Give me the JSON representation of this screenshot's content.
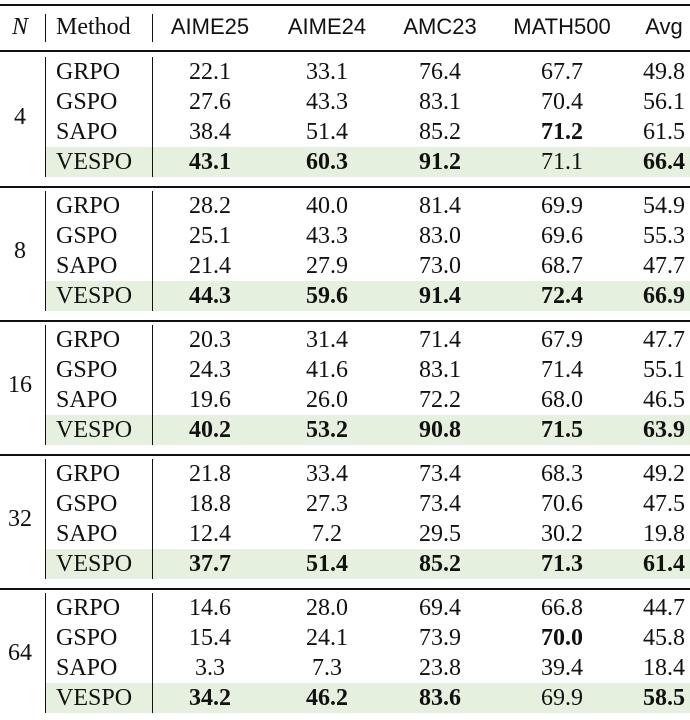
{
  "table": {
    "header": [
      "N",
      "Method",
      "AIME25",
      "AIME24",
      "AMC23",
      "MATH500",
      "Avg"
    ],
    "groups": [
      {
        "n": "4",
        "rows": [
          {
            "method": "GRPO",
            "values": [
              "22.1",
              "33.1",
              "76.4",
              "67.7",
              "49.8"
            ],
            "bold": []
          },
          {
            "method": "GSPO",
            "values": [
              "27.6",
              "43.3",
              "83.1",
              "70.4",
              "56.1"
            ],
            "bold": []
          },
          {
            "method": "SAPO",
            "values": [
              "38.4",
              "51.4",
              "85.2",
              "71.2",
              "61.5"
            ],
            "bold": [
              3
            ]
          },
          {
            "method": "VESPO",
            "values": [
              "43.1",
              "60.3",
              "91.2",
              "71.1",
              "66.4"
            ],
            "bold": [
              0,
              1,
              2,
              4
            ]
          }
        ]
      },
      {
        "n": "8",
        "rows": [
          {
            "method": "GRPO",
            "values": [
              "28.2",
              "40.0",
              "81.4",
              "69.9",
              "54.9"
            ],
            "bold": []
          },
          {
            "method": "GSPO",
            "values": [
              "25.1",
              "43.3",
              "83.0",
              "69.6",
              "55.3"
            ],
            "bold": []
          },
          {
            "method": "SAPO",
            "values": [
              "21.4",
              "27.9",
              "73.0",
              "68.7",
              "47.7"
            ],
            "bold": []
          },
          {
            "method": "VESPO",
            "values": [
              "44.3",
              "59.6",
              "91.4",
              "72.4",
              "66.9"
            ],
            "bold": [
              0,
              1,
              2,
              3,
              4
            ]
          }
        ]
      },
      {
        "n": "16",
        "rows": [
          {
            "method": "GRPO",
            "values": [
              "20.3",
              "31.4",
              "71.4",
              "67.9",
              "47.7"
            ],
            "bold": []
          },
          {
            "method": "GSPO",
            "values": [
              "24.3",
              "41.6",
              "83.1",
              "71.4",
              "55.1"
            ],
            "bold": []
          },
          {
            "method": "SAPO",
            "values": [
              "19.6",
              "26.0",
              "72.2",
              "68.0",
              "46.5"
            ],
            "bold": []
          },
          {
            "method": "VESPO",
            "values": [
              "40.2",
              "53.2",
              "90.8",
              "71.5",
              "63.9"
            ],
            "bold": [
              0,
              1,
              2,
              3,
              4
            ]
          }
        ]
      },
      {
        "n": "32",
        "rows": [
          {
            "method": "GRPO",
            "values": [
              "21.8",
              "33.4",
              "73.4",
              "68.3",
              "49.2"
            ],
            "bold": []
          },
          {
            "method": "GSPO",
            "values": [
              "18.8",
              "27.3",
              "73.4",
              "70.6",
              "47.5"
            ],
            "bold": []
          },
          {
            "method": "SAPO",
            "values": [
              "12.4",
              "7.2",
              "29.5",
              "30.2",
              "19.8"
            ],
            "bold": []
          },
          {
            "method": "VESPO",
            "values": [
              "37.7",
              "51.4",
              "85.2",
              "71.3",
              "61.4"
            ],
            "bold": [
              0,
              1,
              2,
              3,
              4
            ]
          }
        ]
      },
      {
        "n": "64",
        "rows": [
          {
            "method": "GRPO",
            "values": [
              "14.6",
              "28.0",
              "69.4",
              "66.8",
              "44.7"
            ],
            "bold": []
          },
          {
            "method": "GSPO",
            "values": [
              "15.4",
              "24.1",
              "73.9",
              "70.0",
              "45.8"
            ],
            "bold": [
              3
            ]
          },
          {
            "method": "SAPO",
            "values": [
              "3.3",
              "7.3",
              "23.8",
              "39.4",
              "18.4"
            ],
            "bold": []
          },
          {
            "method": "VESPO",
            "values": [
              "34.2",
              "46.2",
              "83.6",
              "69.9",
              "58.5"
            ],
            "bold": [
              0,
              1,
              2,
              4
            ]
          }
        ]
      }
    ]
  }
}
